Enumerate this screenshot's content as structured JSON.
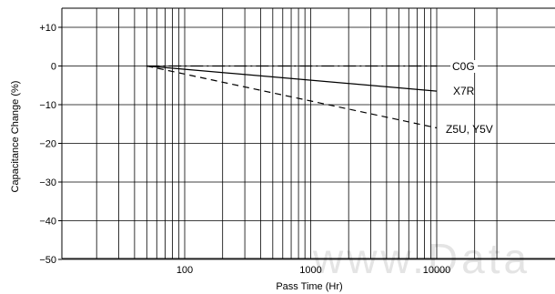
{
  "chart_data": {
    "type": "line",
    "title": "",
    "xlabel": "Pass Time (Hr)",
    "ylabel": "Capacitance Change (%)",
    "x_scale": "log",
    "xlim": [
      10,
      30000
    ],
    "ylim": [
      -52,
      15
    ],
    "x_tick_labels": [
      {
        "value": 100,
        "label": "100"
      },
      {
        "value": 1000,
        "label": "1000"
      },
      {
        "value": 10000,
        "label": "10000"
      }
    ],
    "y_tick_labels": [
      {
        "value": 10,
        "label": "+10"
      },
      {
        "value": 0,
        "label": "0"
      },
      {
        "value": -10,
        "label": "−10"
      },
      {
        "value": -20,
        "label": "−20"
      },
      {
        "value": -30,
        "label": "−30"
      },
      {
        "value": -40,
        "label": "−40"
      },
      {
        "value": -50,
        "label": "−50"
      }
    ],
    "grid": true,
    "series": [
      {
        "name": "C0G",
        "style": "dash-dot",
        "x": [
          50,
          10000
        ],
        "y": [
          0,
          0
        ]
      },
      {
        "name": "X7R",
        "style": "solid",
        "x": [
          50,
          10000
        ],
        "y": [
          0,
          -6.5
        ]
      },
      {
        "name": "Z5U, Y5V",
        "style": "dashed",
        "x": [
          50,
          10000
        ],
        "y": [
          0,
          -16
        ]
      }
    ],
    "watermark": "www.Data"
  }
}
